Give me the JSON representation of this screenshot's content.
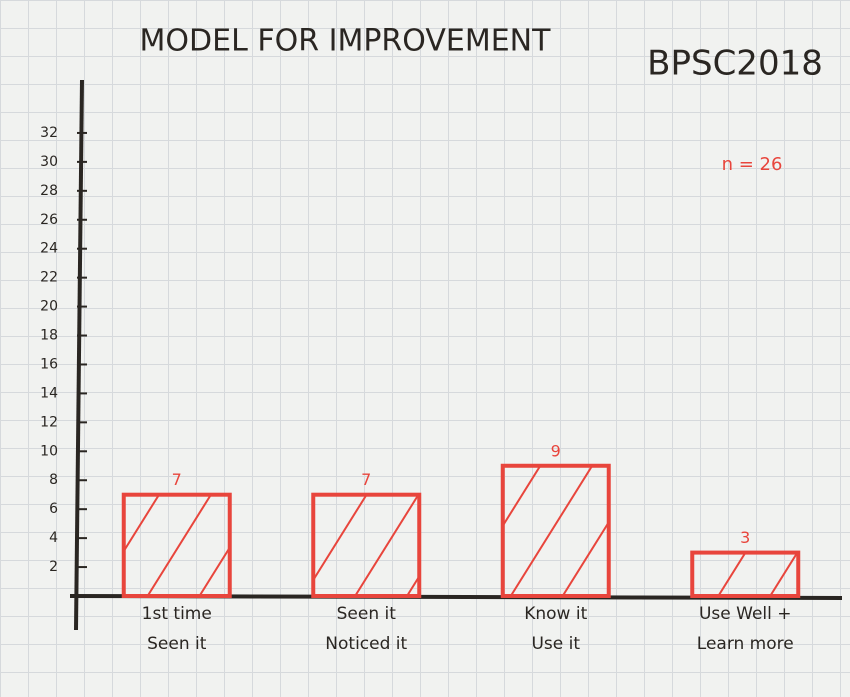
{
  "chart_data": {
    "type": "bar",
    "title": "MODEL FOR IMPROVEMENT",
    "annotations": [
      "BPSC2018",
      "n = 26"
    ],
    "categories": [
      [
        "1st time",
        "Seen it"
      ],
      [
        "Seen it",
        "Noticed it"
      ],
      [
        "Know it",
        "Use it"
      ],
      [
        "Use Well +",
        "Learn more"
      ]
    ],
    "values": [
      7,
      7,
      9,
      3
    ],
    "color": "#e8453c",
    "ylim": [
      0,
      34
    ],
    "yticks": [
      2,
      4,
      6,
      8,
      10,
      12,
      14,
      16,
      18,
      20,
      22,
      24,
      26,
      28,
      30,
      32
    ],
    "grid": false
  }
}
